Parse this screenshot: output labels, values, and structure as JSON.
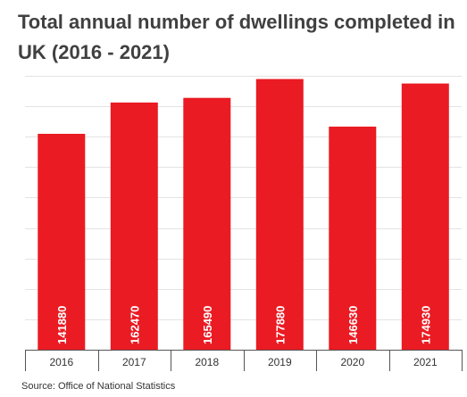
{
  "chart_data": {
    "type": "bar",
    "title": "Total annual number of dwellings completed in UK (2016 - 2021)",
    "categories": [
      "2016",
      "2017",
      "2018",
      "2019",
      "2020",
      "2021"
    ],
    "values": [
      141880,
      162470,
      165490,
      177880,
      146630,
      174930
    ],
    "data_labels": [
      "141880",
      "162470",
      "165490",
      "177880",
      "146630",
      "174930"
    ],
    "xlabel": "",
    "ylabel": "",
    "ylim": [
      0,
      180000
    ],
    "grid": true,
    "legend": "none",
    "bar_color": "#ea1b23",
    "label_color": "#ffffff",
    "source": "Source: Office of National Statistics"
  }
}
